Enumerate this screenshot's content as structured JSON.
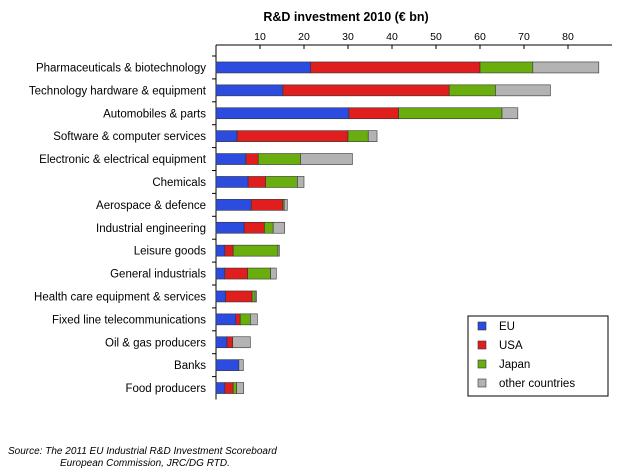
{
  "chart_data": {
    "type": "bar",
    "orientation": "horizontal",
    "stacked": true,
    "title": "R&D investment 2010 (€ bn)",
    "xlim": [
      0,
      90
    ],
    "xticks": [
      10,
      20,
      30,
      40,
      50,
      60,
      70,
      80
    ],
    "categories": [
      "Pharmaceuticals & biotechnology",
      "Technology hardware & equipment",
      "Automobiles & parts",
      "Software & computer services",
      "Electronic & electrical equipment",
      "Chemicals",
      "Aerospace & defence",
      "Industrial engineering",
      "Leisure goods",
      "General industrials",
      "Health care equipment & services",
      "Fixed line telecommunications",
      "Oil & gas producers",
      "Banks",
      "Food producers"
    ],
    "series": [
      {
        "name": "EU",
        "color": "#2b4cde",
        "values": [
          21.5,
          15.2,
          30.2,
          4.8,
          6.8,
          7.3,
          8.0,
          6.4,
          2.0,
          2.0,
          2.2,
          4.5,
          2.5,
          5.2,
          2.0
        ]
      },
      {
        "name": "USA",
        "color": "#e01e1e",
        "values": [
          38.5,
          37.8,
          11.3,
          25.2,
          2.8,
          4.0,
          7.2,
          4.6,
          1.9,
          5.2,
          6.0,
          1.0,
          1.3,
          0.0,
          1.9
        ]
      },
      {
        "name": "Japan",
        "color": "#6aae0e",
        "values": [
          12.0,
          10.5,
          23.5,
          4.6,
          9.6,
          7.2,
          0.3,
          2.0,
          10.2,
          5.2,
          0.7,
          2.3,
          0.0,
          0.0,
          0.8
        ]
      },
      {
        "name": "other countries",
        "color": "#b3b3b3",
        "values": [
          15.0,
          12.5,
          3.6,
          2.0,
          11.8,
          1.5,
          0.7,
          2.6,
          0.3,
          1.3,
          0.3,
          1.6,
          4.0,
          1.0,
          1.6
        ]
      }
    ],
    "legend_position": "bottom-right",
    "grid": false
  },
  "source": {
    "line1": "Source: The 2011 EU Industrial R&D Investment Scoreboard",
    "line2": "European Commission, JRC/DG RTD."
  }
}
